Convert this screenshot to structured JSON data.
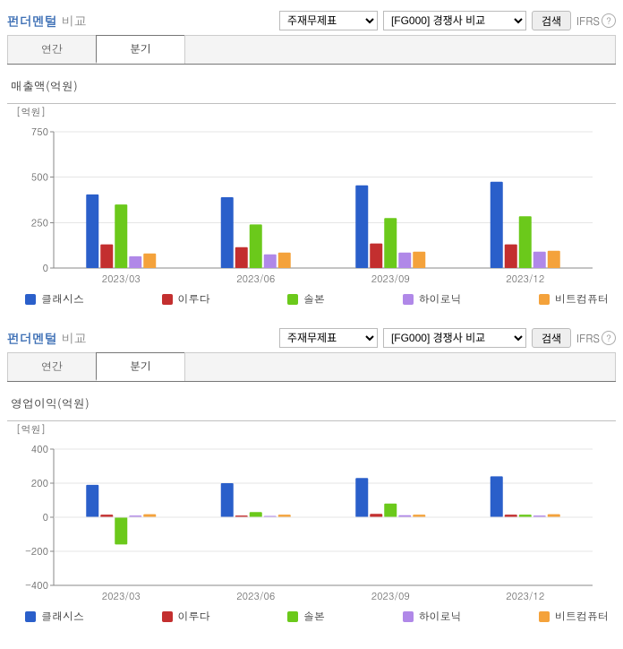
{
  "colors": {
    "series": [
      "#2a5fca",
      "#c32f2f",
      "#6bc91b",
      "#b088e8",
      "#f4a23b"
    ],
    "grid": "#e5e5e5",
    "axis": "#888888",
    "text": "#555555"
  },
  "series_labels": [
    "클래시스",
    "이루다",
    "솔본",
    "하이로닉",
    "비트컴퓨터"
  ],
  "categories": [
    "2023/03",
    "2023/06",
    "2023/09",
    "2023/12"
  ],
  "panels": [
    {
      "title_accent": "펀더멘털",
      "title_gray": "비교",
      "select1": "주재무제표",
      "select2": "[FG000] 경쟁사 비교",
      "search_btn": "검색",
      "ifrs_label": "IFRS",
      "tabs": {
        "annual": "연간",
        "quarter": "분기",
        "active": "quarter"
      },
      "chart_title": "매출액(억원)",
      "y_unit": "[억원]",
      "y_min": 0,
      "y_max": 750,
      "y_step": 250,
      "data": [
        [
          405,
          130,
          350,
          65,
          80
        ],
        [
          390,
          115,
          240,
          75,
          85
        ],
        [
          455,
          135,
          275,
          85,
          90
        ],
        [
          475,
          130,
          285,
          90,
          95
        ]
      ]
    },
    {
      "title_accent": "펀더멘털",
      "title_gray": "비교",
      "select1": "주재무제표",
      "select2": "[FG000] 경쟁사 비교",
      "search_btn": "검색",
      "ifrs_label": "IFRS",
      "tabs": {
        "annual": "연간",
        "quarter": "분기",
        "active": "quarter"
      },
      "chart_title": "영업이익(억원)",
      "y_unit": "[억원]",
      "y_min": -400,
      "y_max": 400,
      "y_step": 200,
      "data": [
        [
          190,
          15,
          -160,
          10,
          18
        ],
        [
          200,
          10,
          30,
          8,
          15
        ],
        [
          230,
          20,
          80,
          12,
          15
        ],
        [
          240,
          15,
          15,
          10,
          18
        ]
      ]
    }
  ]
}
